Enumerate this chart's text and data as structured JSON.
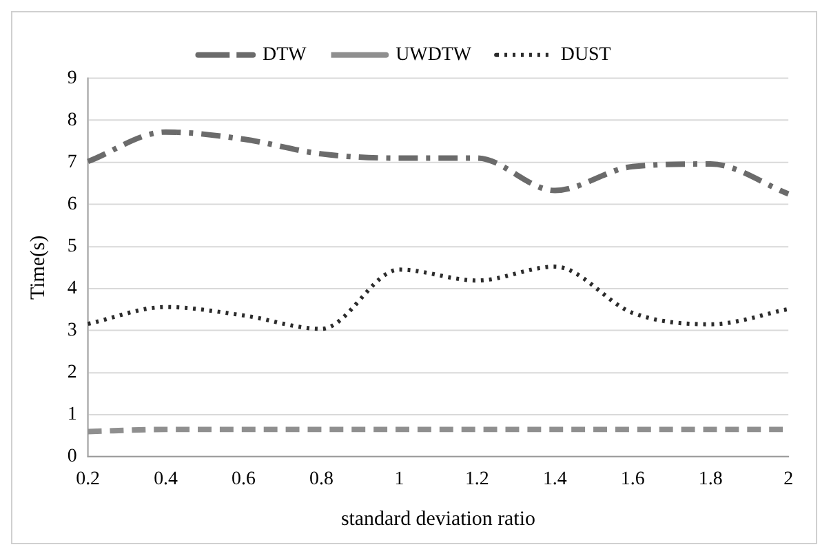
{
  "chart_data": {
    "type": "line",
    "xlabel": "standard deviation ratio",
    "ylabel": "Time(s)",
    "categories": [
      "0.2",
      "0.4",
      "0.6",
      "0.8",
      "1",
      "1.2",
      "1.4",
      "1.6",
      "1.8",
      "2"
    ],
    "series": [
      {
        "name": "DTW",
        "color": "#6b6b6b",
        "line_style": "dashdot",
        "values": [
          7.02,
          7.72,
          7.55,
          7.2,
          7.1,
          7.1,
          6.33,
          6.9,
          6.96,
          6.25
        ]
      },
      {
        "name": "UWDTW",
        "color": "#8f8f8f",
        "line_style": "dashed",
        "values": [
          0.6,
          0.65,
          0.65,
          0.65,
          0.65,
          0.65,
          0.65,
          0.65,
          0.65,
          0.65
        ]
      },
      {
        "name": "DUST",
        "color": "#2b2b2b",
        "line_style": "dotted",
        "values": [
          3.16,
          3.56,
          3.36,
          3.04,
          4.45,
          4.19,
          4.52,
          3.42,
          3.15,
          3.51
        ]
      }
    ],
    "ylim": [
      0,
      9
    ],
    "yticks": [
      0,
      1,
      2,
      3,
      4,
      5,
      6,
      7,
      8,
      9
    ],
    "grid": "y",
    "legend": "top",
    "marker": "none"
  }
}
